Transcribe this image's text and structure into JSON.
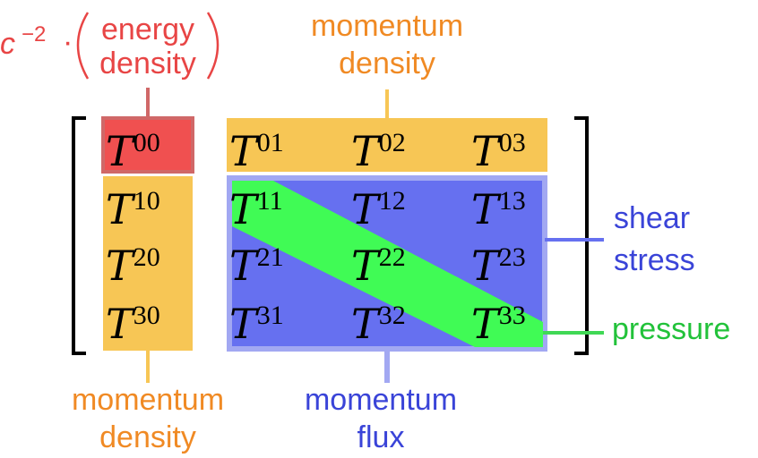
{
  "colors": {
    "energy": "#e84545",
    "momentum_density": "#f08a24",
    "momentum_flux": "#3a44d8",
    "pressure": "#22c23a",
    "box_energy": "#f05050",
    "box_momentum": "#f7c655",
    "box_flux": "#6670f0",
    "band_pressure": "#40fb55"
  },
  "labels": {
    "energy_prefix": "c",
    "energy_exponent": "−2",
    "energy_dot": "·",
    "energy_line1": "energy",
    "energy_line2": "density",
    "top_momentum_line1": "momentum",
    "top_momentum_line2": "density",
    "shear_line1": "shear",
    "shear_line2": "stress",
    "pressure": "pressure",
    "bottom_momentum_line1": "momentum",
    "bottom_momentum_line2": "density",
    "flux_line1": "momentum",
    "flux_line2": "flux"
  },
  "tensor": {
    "symbol": "T",
    "indices": [
      [
        "00",
        "01",
        "02",
        "03"
      ],
      [
        "10",
        "11",
        "12",
        "13"
      ],
      [
        "20",
        "21",
        "22",
        "23"
      ],
      [
        "30",
        "31",
        "32",
        "33"
      ]
    ]
  }
}
